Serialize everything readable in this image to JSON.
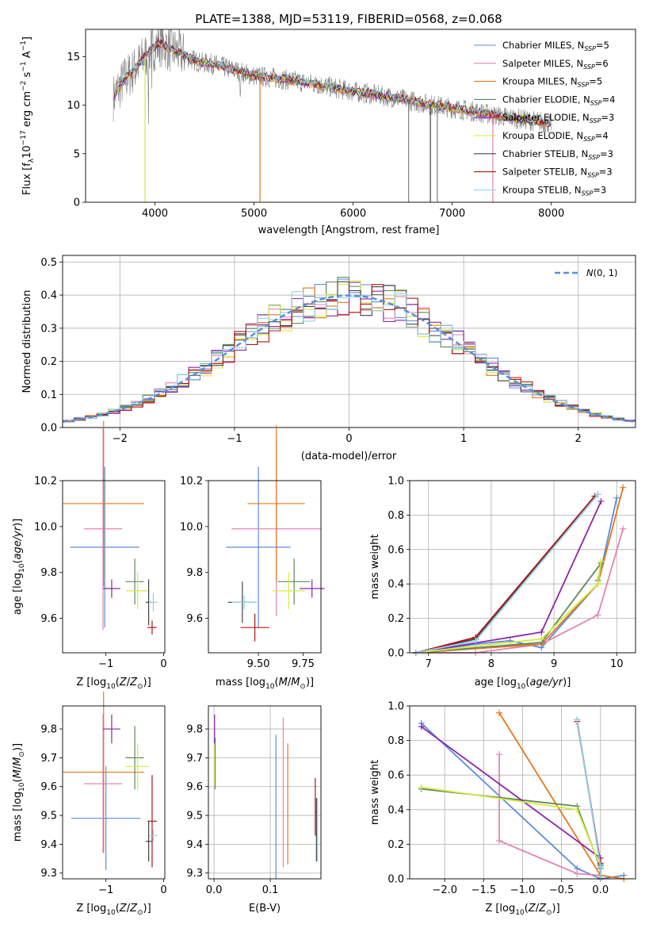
{
  "colors": {
    "chabrier_miles": "#5b8ddb",
    "salpeter_miles": "#e882b4",
    "kroupa_miles": "#e8761a",
    "chabrier_elodie": "#5c8a5c",
    "salpeter_elodie": "#8e24aa",
    "kroupa_elodie": "#d4ec3c",
    "chabrier_stelib": "#444444",
    "salpeter_stelib": "#b01616",
    "kroupa_stelib": "#8fd4ea",
    "gray_spectrum": "#808080",
    "normal_curve": "#5b8ddb",
    "grid": "#b0b0b0"
  },
  "chart_data": [
    {
      "id": "spectrum",
      "type": "line",
      "title": "PLATE=1388, MJD=53119, FIBERID=0568, z=0.068",
      "xlabel": "wavelength [Angstrom, rest frame]",
      "ylabel": "Flux [f_λ10^-17 erg cm^-2 s^-1 A^-1]",
      "xlim": [
        3300,
        8850
      ],
      "ylim": [
        0,
        17.8
      ],
      "xticks": [
        "4000",
        "5000",
        "6000",
        "7000",
        "8000"
      ],
      "yticks": [
        "0",
        "5",
        "10",
        "15"
      ],
      "grid": false,
      "legend_position": "top-right",
      "continuum": {
        "x": [
          3580,
          3650,
          3700,
          3760,
          3820,
          3880,
          3950,
          4050,
          4150,
          4250,
          4350,
          4450,
          4600,
          4800,
          5000,
          5200,
          5400,
          5600,
          5800,
          6000,
          6200,
          6400,
          6600,
          6800,
          7000,
          7200,
          7400,
          7600,
          7800,
          8000,
          8200,
          8400,
          8600,
          8800
        ],
        "y": [
          10.8,
          12.0,
          12.8,
          13.3,
          14.0,
          14.8,
          15.6,
          16.4,
          15.8,
          15.4,
          14.8,
          14.4,
          14.2,
          13.6,
          13.0,
          12.8,
          12.5,
          12.2,
          11.8,
          11.4,
          11.1,
          10.8,
          10.4,
          10.0,
          9.7,
          9.4,
          9.0,
          8.7,
          8.4,
          8.1,
          7.9,
          7.6,
          7.4,
          7.2
        ]
      },
      "series": [
        {
          "name": "Chabrier MILES, N_SSP=5",
          "color_key": "chabrier_miles",
          "nssp": "5"
        },
        {
          "name": "Salpeter MILES, N_SSP=6",
          "color_key": "salpeter_miles",
          "nssp": "6"
        },
        {
          "name": "Kroupa MILES, N_SSP=5",
          "color_key": "kroupa_miles",
          "nssp": "5"
        },
        {
          "name": "Chabrier ELODIE, N_SSP=4",
          "color_key": "chabrier_elodie",
          "nssp": "4"
        },
        {
          "name": "Salpeter ELODIE, N_SSP=3",
          "color_key": "salpeter_elodie",
          "nssp": "3"
        },
        {
          "name": "Kroupa ELODIE, N_SSP=4",
          "color_key": "kroupa_elodie",
          "nssp": "4"
        },
        {
          "name": "Chabrier STELIB, N_SSP=3",
          "color_key": "chabrier_stelib",
          "nssp": "3"
        },
        {
          "name": "Salpeter STELIB, N_SSP=3",
          "color_key": "salpeter_stelib",
          "nssp": "3"
        },
        {
          "name": "Kroupa STELIB, N_SSP=3",
          "color_key": "kroupa_stelib",
          "nssp": "3"
        }
      ],
      "legend_labels": [
        {
          "pre": "Chabrier MILES, N",
          "sub": "SSP",
          "post": "=5"
        },
        {
          "pre": "Salpeter MILES, N",
          "sub": "SSP",
          "post": "=6"
        },
        {
          "pre": "Kroupa MILES, N",
          "sub": "SSP",
          "post": "=5"
        },
        {
          "pre": "Chabrier ELODIE, N",
          "sub": "SSP",
          "post": "=4"
        },
        {
          "pre": "Salpeter ELODIE, N",
          "sub": "SSP",
          "post": "=3"
        },
        {
          "pre": "Kroupa ELODIE, N",
          "sub": "SSP",
          "post": "=4"
        },
        {
          "pre": "Chabrier STELIB, N",
          "sub": "SSP",
          "post": "=3"
        },
        {
          "pre": "Salpeter STELIB, N",
          "sub": "SSP",
          "post": "=3"
        },
        {
          "pre": "Kroupa STELIB, N",
          "sub": "SSP",
          "post": "=3"
        }
      ]
    },
    {
      "id": "residuals",
      "type": "line",
      "xlabel": "(data-model)/error",
      "ylabel": "Normed distribution",
      "xlim": [
        -2.5,
        2.5
      ],
      "ylim": [
        0,
        0.52
      ],
      "xticks": [
        "−2",
        "−1",
        "0",
        "1",
        "2"
      ],
      "yticks": [
        "0.0",
        "0.1",
        "0.2",
        "0.3",
        "0.4",
        "0.5"
      ],
      "grid": true,
      "legend_position": "top-right",
      "legend": "N(0,1)",
      "bin_width": 0.1
    },
    {
      "id": "age_vs_Z",
      "type": "scatter",
      "xlabel": "Z [log10(Z/Z☉)]",
      "ylabel": "age [log10(age/yr)]",
      "xlim": [
        -1.75,
        0.02
      ],
      "ylim": [
        9.45,
        10.2
      ],
      "xticks": [
        "−1",
        "0"
      ],
      "yticks": [
        "9.6",
        "9.8",
        "10.0",
        "10.2"
      ],
      "grid": false,
      "points": [
        {
          "key": "chabrier_miles",
          "x": -1.02,
          "xerr": 0.6,
          "y": 9.91,
          "yerr": 0.35
        },
        {
          "key": "salpeter_miles",
          "x": -1.05,
          "xerr": 0.33,
          "y": 9.99,
          "yerr": 0.44
        },
        {
          "key": "kroupa_miles",
          "x": -1.04,
          "xerr": 0.7,
          "y": 10.1,
          "yerr": 0.36
        },
        {
          "key": "chabrier_elodie",
          "x": -0.5,
          "xerr": 0.16,
          "y": 9.76,
          "yerr": 0.1
        },
        {
          "key": "salpeter_elodie",
          "x": -0.9,
          "xerr": 0.15,
          "y": 9.73,
          "yerr": 0.04
        },
        {
          "key": "kroupa_elodie",
          "x": -0.45,
          "xerr": 0.2,
          "y": 9.72,
          "yerr": 0.08
        },
        {
          "key": "chabrier_stelib",
          "x": -0.26,
          "xerr": 0.05,
          "y": 9.67,
          "yerr": 0.1
        },
        {
          "key": "salpeter_stelib",
          "x": -0.2,
          "xerr": 0.08,
          "y": 9.56,
          "yerr": 0.03
        },
        {
          "key": "kroupa_stelib",
          "x": -0.18,
          "xerr": 0.07,
          "y": 9.67,
          "yerr": 0.04
        }
      ]
    },
    {
      "id": "age_vs_mass",
      "type": "scatter",
      "xlabel": "mass [log10(M/M☉)]",
      "ylabel": "",
      "xlim": [
        9.22,
        9.85
      ],
      "ylim": [
        9.45,
        10.2
      ],
      "xticks": [
        "9.50",
        "9.75"
      ],
      "yticks": [
        "9.6",
        "9.8",
        "10.0",
        "10.2"
      ],
      "grid": false,
      "points": [
        {
          "key": "chabrier_miles",
          "x": 9.5,
          "xerr": 0.18,
          "y": 9.91,
          "yerr": 0.35
        },
        {
          "key": "salpeter_miles",
          "x": 9.6,
          "xerr": 0.25,
          "y": 9.99,
          "yerr": 0.38
        },
        {
          "key": "kroupa_miles",
          "x": 9.6,
          "xerr": 0.16,
          "y": 10.1,
          "yerr": 0.34
        },
        {
          "key": "chabrier_elodie",
          "x": 9.7,
          "xerr": 0.09,
          "y": 9.76,
          "yerr": 0.1
        },
        {
          "key": "salpeter_elodie",
          "x": 9.8,
          "xerr": 0.07,
          "y": 9.73,
          "yerr": 0.04
        },
        {
          "key": "kroupa_elodie",
          "x": 9.67,
          "xerr": 0.09,
          "y": 9.72,
          "yerr": 0.08
        },
        {
          "key": "chabrier_stelib",
          "x": 9.41,
          "xerr": 0.08,
          "y": 9.67,
          "yerr": 0.09
        },
        {
          "key": "salpeter_stelib",
          "x": 9.48,
          "xerr": 0.08,
          "y": 9.56,
          "yerr": 0.06
        },
        {
          "key": "kroupa_stelib",
          "x": 9.42,
          "xerr": 0.07,
          "y": 9.67,
          "yerr": 0.03
        }
      ]
    },
    {
      "id": "massweight_vs_age",
      "type": "line",
      "xlabel": "age [log10(age/yr)]",
      "ylabel": "mass weight",
      "xlim": [
        6.7,
        10.3
      ],
      "ylim": [
        0,
        1.0
      ],
      "xticks": [
        "7",
        "8",
        "9",
        "10"
      ],
      "yticks": [
        "0.0",
        "0.2",
        "0.4",
        "0.6",
        "0.8",
        "1.0"
      ],
      "grid": true,
      "series": [
        {
          "key": "chabrier_miles",
          "x": [
            6.8,
            7.75,
            8.3,
            8.8,
            9.7,
            10.0
          ],
          "y": [
            0.0,
            0.05,
            0.07,
            0.03,
            0.4,
            0.9
          ]
        },
        {
          "key": "salpeter_miles",
          "x": [
            6.8,
            7.75,
            8.8,
            9.7,
            10.1
          ],
          "y": [
            0.0,
            0.0,
            0.05,
            0.22,
            0.72
          ]
        },
        {
          "key": "kroupa_miles",
          "x": [
            6.8,
            8.8,
            9.7,
            10.1
          ],
          "y": [
            0.0,
            0.05,
            0.4,
            0.96
          ]
        },
        {
          "key": "chabrier_elodie",
          "x": [
            6.8,
            8.8,
            9.75,
            9.7
          ],
          "y": [
            0.0,
            0.06,
            0.52,
            0.42
          ]
        },
        {
          "key": "salpeter_elodie",
          "x": [
            6.8,
            8.8,
            9.75
          ],
          "y": [
            0.0,
            0.12,
            0.88
          ]
        },
        {
          "key": "kroupa_elodie",
          "x": [
            6.8,
            8.8,
            9.7,
            9.75
          ],
          "y": [
            0.0,
            0.08,
            0.4,
            0.53
          ]
        },
        {
          "key": "chabrier_stelib",
          "x": [
            6.8,
            7.75,
            9.7
          ],
          "y": [
            0.0,
            0.08,
            0.92
          ]
        },
        {
          "key": "salpeter_stelib",
          "x": [
            6.8,
            7.75,
            9.65
          ],
          "y": [
            0.0,
            0.09,
            0.91
          ]
        },
        {
          "key": "kroupa_stelib",
          "x": [
            6.8,
            7.75,
            9.7
          ],
          "y": [
            0.0,
            0.07,
            0.92
          ]
        }
      ]
    },
    {
      "id": "mass_vs_Z",
      "type": "scatter",
      "xlabel": "Z [log10(Z/Z☉)]",
      "ylabel": "mass [log10(M/M☉)]",
      "xlim": [
        -1.75,
        0.02
      ],
      "ylim": [
        9.28,
        9.88
      ],
      "xticks": [
        "−1",
        "0"
      ],
      "yticks": [
        "9.3",
        "9.4",
        "9.5",
        "9.6",
        "9.7",
        "9.8"
      ],
      "grid": false,
      "points": [
        {
          "key": "chabrier_miles",
          "x": -1.0,
          "xerr": 0.6,
          "y": 9.49,
          "yerr": 0.18
        },
        {
          "key": "salpeter_miles",
          "x": -1.05,
          "xerr": 0.33,
          "y": 9.61,
          "yerr": 0.24
        },
        {
          "key": "kroupa_miles",
          "x": -1.04,
          "xerr": 0.7,
          "y": 9.65,
          "yerr": 0.28
        },
        {
          "key": "chabrier_elodie",
          "x": -0.5,
          "xerr": 0.16,
          "y": 9.7,
          "yerr": 0.11
        },
        {
          "key": "salpeter_elodie",
          "x": -0.9,
          "xerr": 0.15,
          "y": 9.8,
          "yerr": 0.05
        },
        {
          "key": "kroupa_elodie",
          "x": -0.45,
          "xerr": 0.2,
          "y": 9.67,
          "yerr": 0.08
        },
        {
          "key": "chabrier_stelib",
          "x": -0.26,
          "xerr": 0.05,
          "y": 9.41,
          "yerr": 0.07
        },
        {
          "key": "salpeter_stelib",
          "x": -0.2,
          "xerr": 0.08,
          "y": 9.48,
          "yerr": 0.16
        },
        {
          "key": "kroupa_stelib",
          "x": -0.18,
          "xerr": 0.07,
          "y": 9.43,
          "yerr": 0.02
        }
      ]
    },
    {
      "id": "mass_vs_ebv",
      "type": "scatter",
      "xlabel": "E(B-V)",
      "ylabel": "",
      "xlim": [
        -0.01,
        0.19
      ],
      "ylim": [
        9.28,
        9.88
      ],
      "xticks": [
        "0.0",
        "0.1"
      ],
      "yticks": [
        "9.3",
        "9.4",
        "9.5",
        "9.6",
        "9.7",
        "9.8"
      ],
      "grid": true,
      "points": [
        {
          "key": "chabrier_miles",
          "x": 0.11,
          "y": 9.53,
          "yerr": 0.25
        },
        {
          "key": "salpeter_miles",
          "x": 0.123,
          "y": 9.58,
          "yerr": 0.26
        },
        {
          "key": "kroupa_miles",
          "x": 0.131,
          "y": 9.54,
          "yerr": 0.21
        },
        {
          "key": "chabrier_elodie",
          "x": 0.002,
          "y": 9.68,
          "yerr": 0.09
        },
        {
          "key": "salpeter_elodie",
          "x": 0.001,
          "y": 9.8,
          "yerr": 0.05
        },
        {
          "key": "kroupa_elodie",
          "x": 0.0,
          "y": 9.67,
          "yerr": 0.07
        },
        {
          "key": "chabrier_stelib",
          "x": 0.182,
          "y": 9.45,
          "yerr": 0.11
        },
        {
          "key": "salpeter_stelib",
          "x": 0.18,
          "y": 9.53,
          "yerr": 0.1
        },
        {
          "key": "kroupa_stelib",
          "x": 0.184,
          "y": 9.45,
          "yerr": 0.11
        }
      ]
    },
    {
      "id": "massweight_vs_Z",
      "type": "line",
      "xlabel": "Z [log10(Z/Z☉)]",
      "ylabel": "mass weight",
      "xlim": [
        -2.45,
        0.45
      ],
      "ylim": [
        0,
        1.0
      ],
      "xticks": [
        "−2.0",
        "−1.5",
        "−1.0",
        "−0.5",
        "0.0"
      ],
      "yticks": [
        "0.0",
        "0.2",
        "0.4",
        "0.6",
        "0.8",
        "1.0"
      ],
      "grid": true,
      "series": [
        {
          "key": "chabrier_miles",
          "x": [
            -2.3,
            -0.3,
            0.0,
            0.3
          ],
          "y": [
            0.9,
            0.06,
            0.0,
            0.02
          ]
        },
        {
          "key": "salpeter_miles",
          "x": [
            -1.3,
            -1.3,
            -0.3,
            0.0
          ],
          "y": [
            0.72,
            0.22,
            0.03,
            0.02
          ]
        },
        {
          "key": "kroupa_miles",
          "x": [
            -1.3,
            0.0,
            0.3
          ],
          "y": [
            0.96,
            0.02,
            0.0
          ]
        },
        {
          "key": "chabrier_elodie",
          "x": [
            -2.3,
            -0.3,
            0.0
          ],
          "y": [
            0.52,
            0.42,
            0.06
          ]
        },
        {
          "key": "salpeter_elodie",
          "x": [
            -2.3,
            0.0,
            0.0
          ],
          "y": [
            0.88,
            0.12,
            0.0
          ]
        },
        {
          "key": "kroupa_elodie",
          "x": [
            -2.3,
            -0.3,
            0.0
          ],
          "y": [
            0.53,
            0.4,
            0.07
          ]
        },
        {
          "key": "chabrier_stelib",
          "x": [
            -0.3,
            0.0,
            0.0
          ],
          "y": [
            0.92,
            0.08,
            0.0
          ]
        },
        {
          "key": "salpeter_stelib",
          "x": [
            -0.3,
            0.0,
            0.0
          ],
          "y": [
            0.91,
            0.09,
            0.0
          ]
        },
        {
          "key": "kroupa_stelib",
          "x": [
            -0.3,
            0.0,
            0.0
          ],
          "y": [
            0.92,
            0.07,
            0.0
          ]
        }
      ]
    }
  ]
}
